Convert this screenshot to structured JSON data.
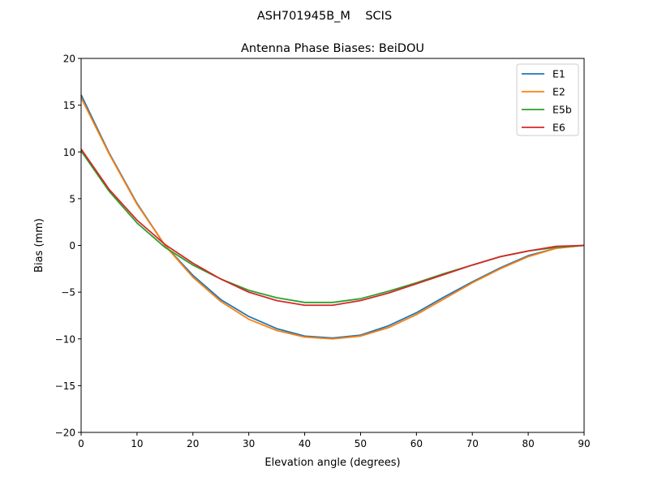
{
  "chart_data": {
    "type": "line",
    "suptitle": "ASH701945B_M    SCIS",
    "title": "Antenna Phase Biases: BeiDOU",
    "xlabel": "Elevation angle (degrees)",
    "ylabel": "Bias (mm)",
    "xlim": [
      0,
      90
    ],
    "ylim": [
      -20,
      20
    ],
    "xticks": [
      0,
      10,
      20,
      30,
      40,
      50,
      60,
      70,
      80,
      90
    ],
    "yticks": [
      20,
      15,
      10,
      5,
      0,
      -5,
      -10,
      -15,
      -20
    ],
    "ytick_labels": [
      "20",
      "15",
      "10",
      "5",
      "0",
      "−5",
      "−10",
      "−15",
      "−20"
    ],
    "grid": false,
    "legend_position": "top-right",
    "x": [
      0,
      5,
      10,
      15,
      20,
      25,
      30,
      35,
      40,
      45,
      50,
      55,
      60,
      65,
      70,
      75,
      80,
      85,
      90
    ],
    "series": [
      {
        "name": "E1",
        "color": "#1f77b4",
        "values": [
          16.1,
          9.9,
          4.5,
          0.0,
          -3.2,
          -5.8,
          -7.6,
          -8.9,
          -9.7,
          -9.9,
          -9.6,
          -8.6,
          -7.2,
          -5.5,
          -3.9,
          -2.4,
          -1.1,
          -0.3,
          0.0
        ]
      },
      {
        "name": "E2",
        "color": "#ff7f0e",
        "values": [
          15.8,
          9.8,
          4.4,
          0.0,
          -3.4,
          -6.0,
          -7.9,
          -9.1,
          -9.8,
          -10.0,
          -9.7,
          -8.8,
          -7.4,
          -5.7,
          -4.0,
          -2.5,
          -1.2,
          -0.3,
          0.0
        ]
      },
      {
        "name": "E5b",
        "color": "#2ca02c",
        "values": [
          10.1,
          5.8,
          2.4,
          -0.2,
          -2.1,
          -3.6,
          -4.8,
          -5.6,
          -6.1,
          -6.1,
          -5.7,
          -4.9,
          -4.0,
          -3.0,
          -2.1,
          -1.2,
          -0.6,
          -0.2,
          0.0
        ]
      },
      {
        "name": "E6",
        "color": "#d62728",
        "values": [
          10.3,
          6.0,
          2.7,
          0.1,
          -1.9,
          -3.6,
          -5.0,
          -5.9,
          -6.4,
          -6.4,
          -5.9,
          -5.1,
          -4.1,
          -3.1,
          -2.1,
          -1.2,
          -0.6,
          -0.1,
          0.0
        ]
      }
    ]
  }
}
